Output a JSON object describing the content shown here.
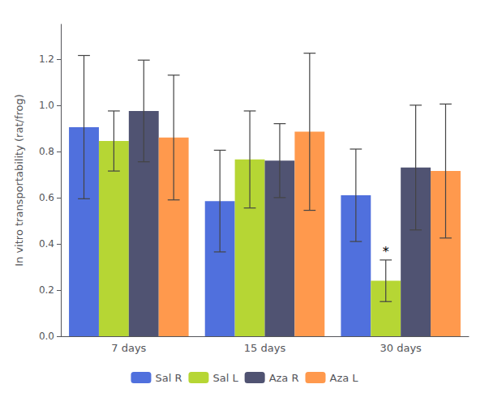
{
  "chart_data": {
    "type": "bar",
    "categories": [
      "7 days",
      "15 days",
      "30 days"
    ],
    "series": [
      {
        "name": "Sal R",
        "values": [
          0.905,
          0.585,
          0.61
        ],
        "errors": [
          0.31,
          0.22,
          0.2
        ]
      },
      {
        "name": "Sal L",
        "values": [
          0.845,
          0.765,
          0.24
        ],
        "errors": [
          0.13,
          0.21,
          0.09
        ]
      },
      {
        "name": "Aza R",
        "values": [
          0.975,
          0.76,
          0.73
        ],
        "errors": [
          0.22,
          0.16,
          0.27
        ]
      },
      {
        "name": "Aza L",
        "values": [
          0.86,
          0.885,
          0.715
        ],
        "errors": [
          0.27,
          0.34,
          0.29
        ]
      }
    ],
    "ylabel": "In vitro transportability (rat/frog)",
    "ylim": [
      0,
      1.35
    ],
    "yticks": [
      {
        "value": 0,
        "label": "0.0"
      },
      0.2,
      0.4,
      0.6,
      0.8,
      {
        "value": 1.0,
        "label": "1.0"
      },
      1.2
    ],
    "grid": false,
    "legend": "bottom",
    "annotations": [
      {
        "text": "*",
        "category": "30 days",
        "series": "Sal L"
      }
    ]
  }
}
